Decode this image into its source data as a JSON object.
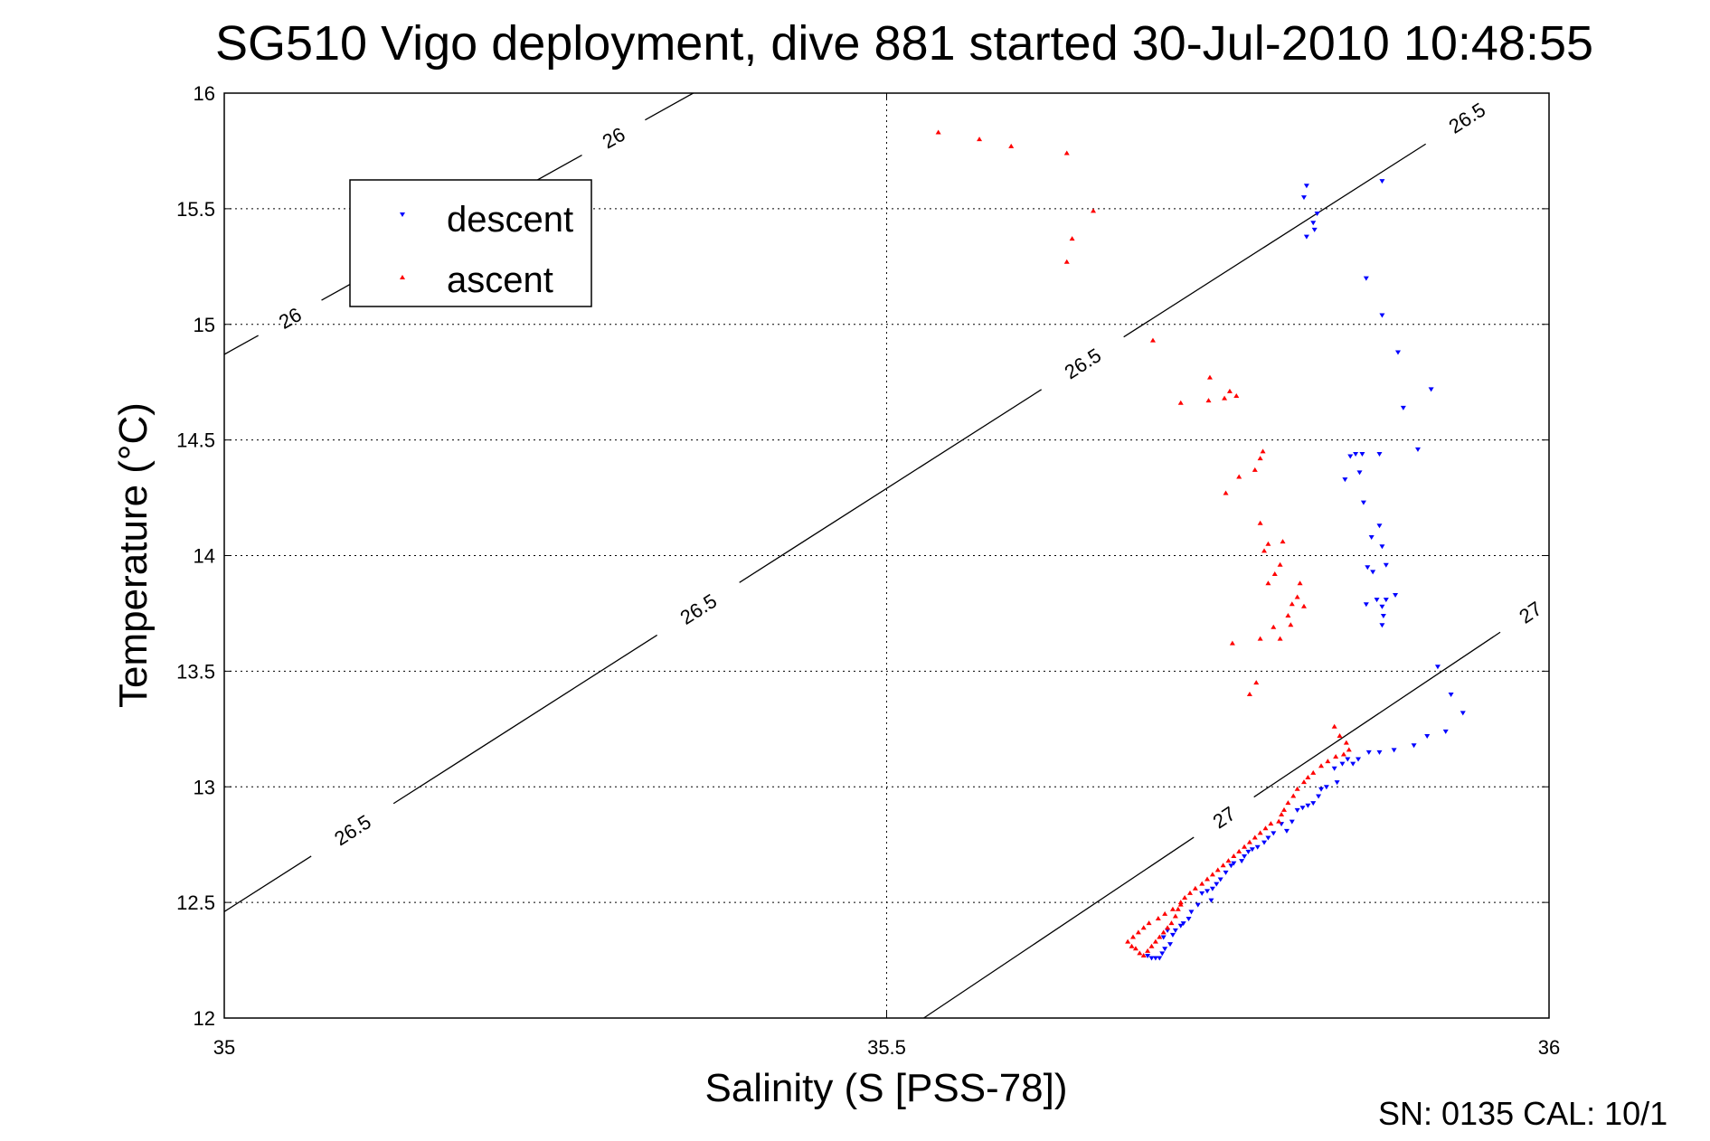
{
  "chart_data": {
    "type": "scatter",
    "title": "SG510 Vigo deployment, dive 881 started 30-Jul-2010 10:48:55",
    "xlabel": "Salinity (S [PSS-78])",
    "ylabel": "Temperature (°C)",
    "xlim": [
      35,
      36
    ],
    "ylim": [
      12,
      16
    ],
    "xticks": [
      "35",
      "35.5",
      "36"
    ],
    "yticks": [
      "12",
      "12.5",
      "13",
      "13.5",
      "14",
      "14.5",
      "15",
      "15.5",
      "16"
    ],
    "grid": true,
    "legend_position": "upper-left",
    "series": [
      {
        "name": "descent",
        "color": "#0000ff",
        "marker": "down-triangle",
        "points": [
          [
            35.817,
            15.6
          ],
          [
            35.815,
            15.55
          ],
          [
            35.822,
            15.44
          ],
          [
            35.825,
            15.48
          ],
          [
            35.817,
            15.38
          ],
          [
            35.823,
            15.41
          ],
          [
            35.874,
            15.62
          ],
          [
            35.862,
            15.2
          ],
          [
            35.874,
            15.04
          ],
          [
            35.886,
            14.88
          ],
          [
            35.89,
            14.64
          ],
          [
            35.901,
            14.46
          ],
          [
            35.911,
            14.72
          ],
          [
            35.854,
            14.44
          ],
          [
            35.859,
            14.44
          ],
          [
            35.85,
            14.43
          ],
          [
            35.872,
            14.44
          ],
          [
            35.846,
            14.33
          ],
          [
            35.857,
            14.36
          ],
          [
            35.86,
            14.23
          ],
          [
            35.872,
            14.13
          ],
          [
            35.866,
            14.08
          ],
          [
            35.874,
            14.04
          ],
          [
            35.863,
            13.95
          ],
          [
            35.877,
            13.96
          ],
          [
            35.867,
            13.93
          ],
          [
            35.87,
            13.81
          ],
          [
            35.877,
            13.81
          ],
          [
            35.862,
            13.79
          ],
          [
            35.874,
            13.78
          ],
          [
            35.884,
            13.83
          ],
          [
            35.875,
            13.74
          ],
          [
            35.874,
            13.7
          ],
          [
            35.916,
            13.52
          ],
          [
            35.926,
            13.4
          ],
          [
            35.935,
            13.32
          ],
          [
            35.922,
            13.24
          ],
          [
            35.908,
            13.22
          ],
          [
            35.898,
            13.18
          ],
          [
            35.883,
            13.16
          ],
          [
            35.872,
            13.15
          ],
          [
            35.864,
            13.15
          ],
          [
            35.856,
            13.12
          ],
          [
            35.852,
            13.1
          ],
          [
            35.848,
            13.12
          ],
          [
            35.844,
            13.1
          ],
          [
            35.838,
            13.08
          ],
          [
            35.84,
            13.02
          ],
          [
            35.832,
            13.0
          ],
          [
            35.826,
            12.96
          ],
          [
            35.828,
            12.99
          ],
          [
            35.818,
            12.92
          ],
          [
            35.822,
            12.93
          ],
          [
            35.814,
            12.91
          ],
          [
            35.81,
            12.9
          ],
          [
            35.806,
            12.85
          ],
          [
            35.798,
            12.84
          ],
          [
            35.802,
            12.81
          ],
          [
            35.792,
            12.8
          ],
          [
            35.788,
            12.78
          ],
          [
            35.785,
            12.76
          ],
          [
            35.78,
            12.74
          ],
          [
            35.776,
            12.73
          ],
          [
            35.773,
            12.72
          ],
          [
            35.77,
            12.7
          ],
          [
            35.768,
            12.68
          ],
          [
            35.762,
            12.67
          ],
          [
            35.756,
            12.63
          ],
          [
            35.76,
            12.66
          ],
          [
            35.752,
            12.6
          ],
          [
            35.749,
            12.58
          ],
          [
            35.746,
            12.56
          ],
          [
            35.742,
            12.55
          ],
          [
            35.738,
            12.54
          ],
          [
            35.745,
            12.51
          ],
          [
            35.735,
            12.49
          ],
          [
            35.73,
            12.46
          ],
          [
            35.728,
            12.43
          ],
          [
            35.724,
            12.41
          ],
          [
            35.722,
            12.4
          ],
          [
            35.718,
            12.38
          ],
          [
            35.716,
            12.36
          ],
          [
            35.712,
            12.38
          ],
          [
            35.709,
            12.35
          ],
          [
            35.714,
            12.32
          ],
          [
            35.71,
            12.3
          ],
          [
            35.708,
            12.28
          ],
          [
            35.706,
            12.26
          ],
          [
            35.7,
            12.26
          ],
          [
            35.703,
            12.26
          ],
          [
            35.697,
            12.27
          ]
        ]
      },
      {
        "name": "ascent",
        "color": "#ff0000",
        "marker": "up-triangle",
        "points": [
          [
            35.539,
            15.83
          ],
          [
            35.57,
            15.8
          ],
          [
            35.594,
            15.77
          ],
          [
            35.636,
            15.74
          ],
          [
            35.656,
            15.49
          ],
          [
            35.64,
            15.37
          ],
          [
            35.636,
            15.27
          ],
          [
            35.701,
            14.93
          ],
          [
            35.722,
            14.66
          ],
          [
            35.744,
            14.77
          ],
          [
            35.759,
            14.71
          ],
          [
            35.764,
            14.69
          ],
          [
            35.755,
            14.68
          ],
          [
            35.743,
            14.67
          ],
          [
            35.784,
            14.45
          ],
          [
            35.782,
            14.42
          ],
          [
            35.778,
            14.37
          ],
          [
            35.766,
            14.34
          ],
          [
            35.756,
            14.27
          ],
          [
            35.782,
            14.14
          ],
          [
            35.788,
            14.05
          ],
          [
            35.799,
            14.06
          ],
          [
            35.785,
            14.02
          ],
          [
            35.797,
            13.96
          ],
          [
            35.793,
            13.92
          ],
          [
            35.788,
            13.88
          ],
          [
            35.812,
            13.88
          ],
          [
            35.81,
            13.82
          ],
          [
            35.806,
            13.79
          ],
          [
            35.815,
            13.78
          ],
          [
            35.803,
            13.74
          ],
          [
            35.805,
            13.7
          ],
          [
            35.792,
            13.69
          ],
          [
            35.782,
            13.64
          ],
          [
            35.797,
            13.64
          ],
          [
            35.761,
            13.62
          ],
          [
            35.779,
            13.45
          ],
          [
            35.774,
            13.4
          ],
          [
            35.838,
            13.26
          ],
          [
            35.842,
            13.22
          ],
          [
            35.847,
            13.19
          ],
          [
            35.849,
            13.16
          ],
          [
            35.845,
            13.14
          ],
          [
            35.839,
            13.13
          ],
          [
            35.833,
            13.11
          ],
          [
            35.828,
            13.09
          ],
          [
            35.822,
            13.06
          ],
          [
            35.818,
            13.04
          ],
          [
            35.815,
            13.02
          ],
          [
            35.81,
            12.99
          ],
          [
            35.807,
            12.96
          ],
          [
            35.803,
            12.93
          ],
          [
            35.8,
            12.9
          ],
          [
            35.798,
            12.88
          ],
          [
            35.796,
            12.85
          ],
          [
            35.79,
            12.84
          ],
          [
            35.786,
            12.82
          ],
          [
            35.782,
            12.8
          ],
          [
            35.778,
            12.78
          ],
          [
            35.774,
            12.76
          ],
          [
            35.77,
            12.74
          ],
          [
            35.766,
            12.72
          ],
          [
            35.762,
            12.7
          ],
          [
            35.758,
            12.68
          ],
          [
            35.754,
            12.66
          ],
          [
            35.75,
            12.64
          ],
          [
            35.746,
            12.62
          ],
          [
            35.742,
            12.6
          ],
          [
            35.738,
            12.58
          ],
          [
            35.733,
            12.56
          ],
          [
            35.729,
            12.54
          ],
          [
            35.725,
            12.52
          ],
          [
            35.722,
            12.5
          ],
          [
            35.72,
            12.47
          ],
          [
            35.718,
            12.44
          ],
          [
            35.715,
            12.41
          ],
          [
            35.712,
            12.39
          ],
          [
            35.709,
            12.37
          ],
          [
            35.706,
            12.35
          ],
          [
            35.703,
            12.33
          ],
          [
            35.7,
            12.31
          ],
          [
            35.697,
            12.29
          ],
          [
            35.694,
            12.27
          ],
          [
            35.691,
            12.28
          ],
          [
            35.688,
            12.3
          ],
          [
            35.685,
            12.31
          ],
          [
            35.682,
            12.33
          ],
          [
            35.686,
            12.35
          ],
          [
            35.69,
            12.37
          ],
          [
            35.694,
            12.39
          ],
          [
            35.698,
            12.41
          ],
          [
            35.705,
            12.43
          ],
          [
            35.71,
            12.45
          ],
          [
            35.716,
            12.47
          ],
          [
            35.722,
            12.49
          ]
        ]
      }
    ],
    "contours": [
      {
        "label": "26",
        "x0": 35.0,
        "y0": 14.87,
        "x1": 35.354,
        "y1": 16.0,
        "labels_at": [
          0.14,
          0.83
        ]
      },
      {
        "label": "26.5",
        "x0": 35.0,
        "y0": 12.46,
        "x1": 35.967,
        "y1": 16.0,
        "labels_at": [
          0.1,
          0.37,
          0.67,
          0.97
        ]
      },
      {
        "label": "27",
        "x0": 35.528,
        "y0": 12.0,
        "x1": 36.0,
        "y1": 13.81,
        "labels_at": [
          0.48,
          0.97
        ]
      }
    ]
  },
  "footer": {
    "sn_cal": "SN: 0135  CAL: 10/1"
  }
}
